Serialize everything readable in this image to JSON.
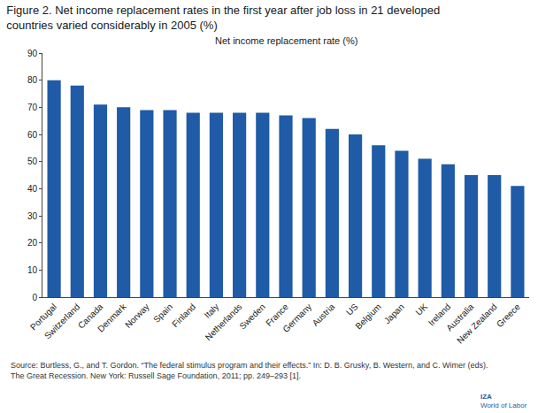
{
  "chart_data": {
    "type": "bar",
    "title": [
      "Figure 2. Net income replacement rates in the first year after job loss in 21 developed",
      "countries varied considerably in 2005 (%)"
    ],
    "subtitle": "Net income replacement rate (%)",
    "categories": [
      "Portugal",
      "Switzerland",
      "Canada",
      "Denmark",
      "Norway",
      "Spain",
      "Finland",
      "Italy",
      "Netherlands",
      "Sweden",
      "France",
      "Germany",
      "Austria",
      "US",
      "Belgium",
      "Japan",
      "UK",
      "Ireland",
      "Australia",
      "New Zealand",
      "Greece"
    ],
    "values": [
      80,
      78,
      71,
      70,
      69,
      69,
      68,
      68,
      68,
      68,
      67,
      66,
      62,
      60,
      56,
      54,
      51,
      49,
      45,
      45,
      41
    ],
    "color": "#1f5ba6",
    "ylim": [
      0,
      90
    ],
    "yticks": [
      0,
      10,
      20,
      30,
      40,
      50,
      60,
      70,
      80,
      90
    ],
    "grid": false,
    "annotations": [
      [
        "Source: Burtless, G., and T. Gordon. “The federal stimulus program and their effects.” In: D. B. Grusky, B. Western, and C. Wimer (eds).",
        "The Great Recession. New York: Russell Sage Foundation, 2011; pp. 249–293 [1]."
      ],
      [
        "IZA",
        "World of Labor"
      ]
    ]
  }
}
